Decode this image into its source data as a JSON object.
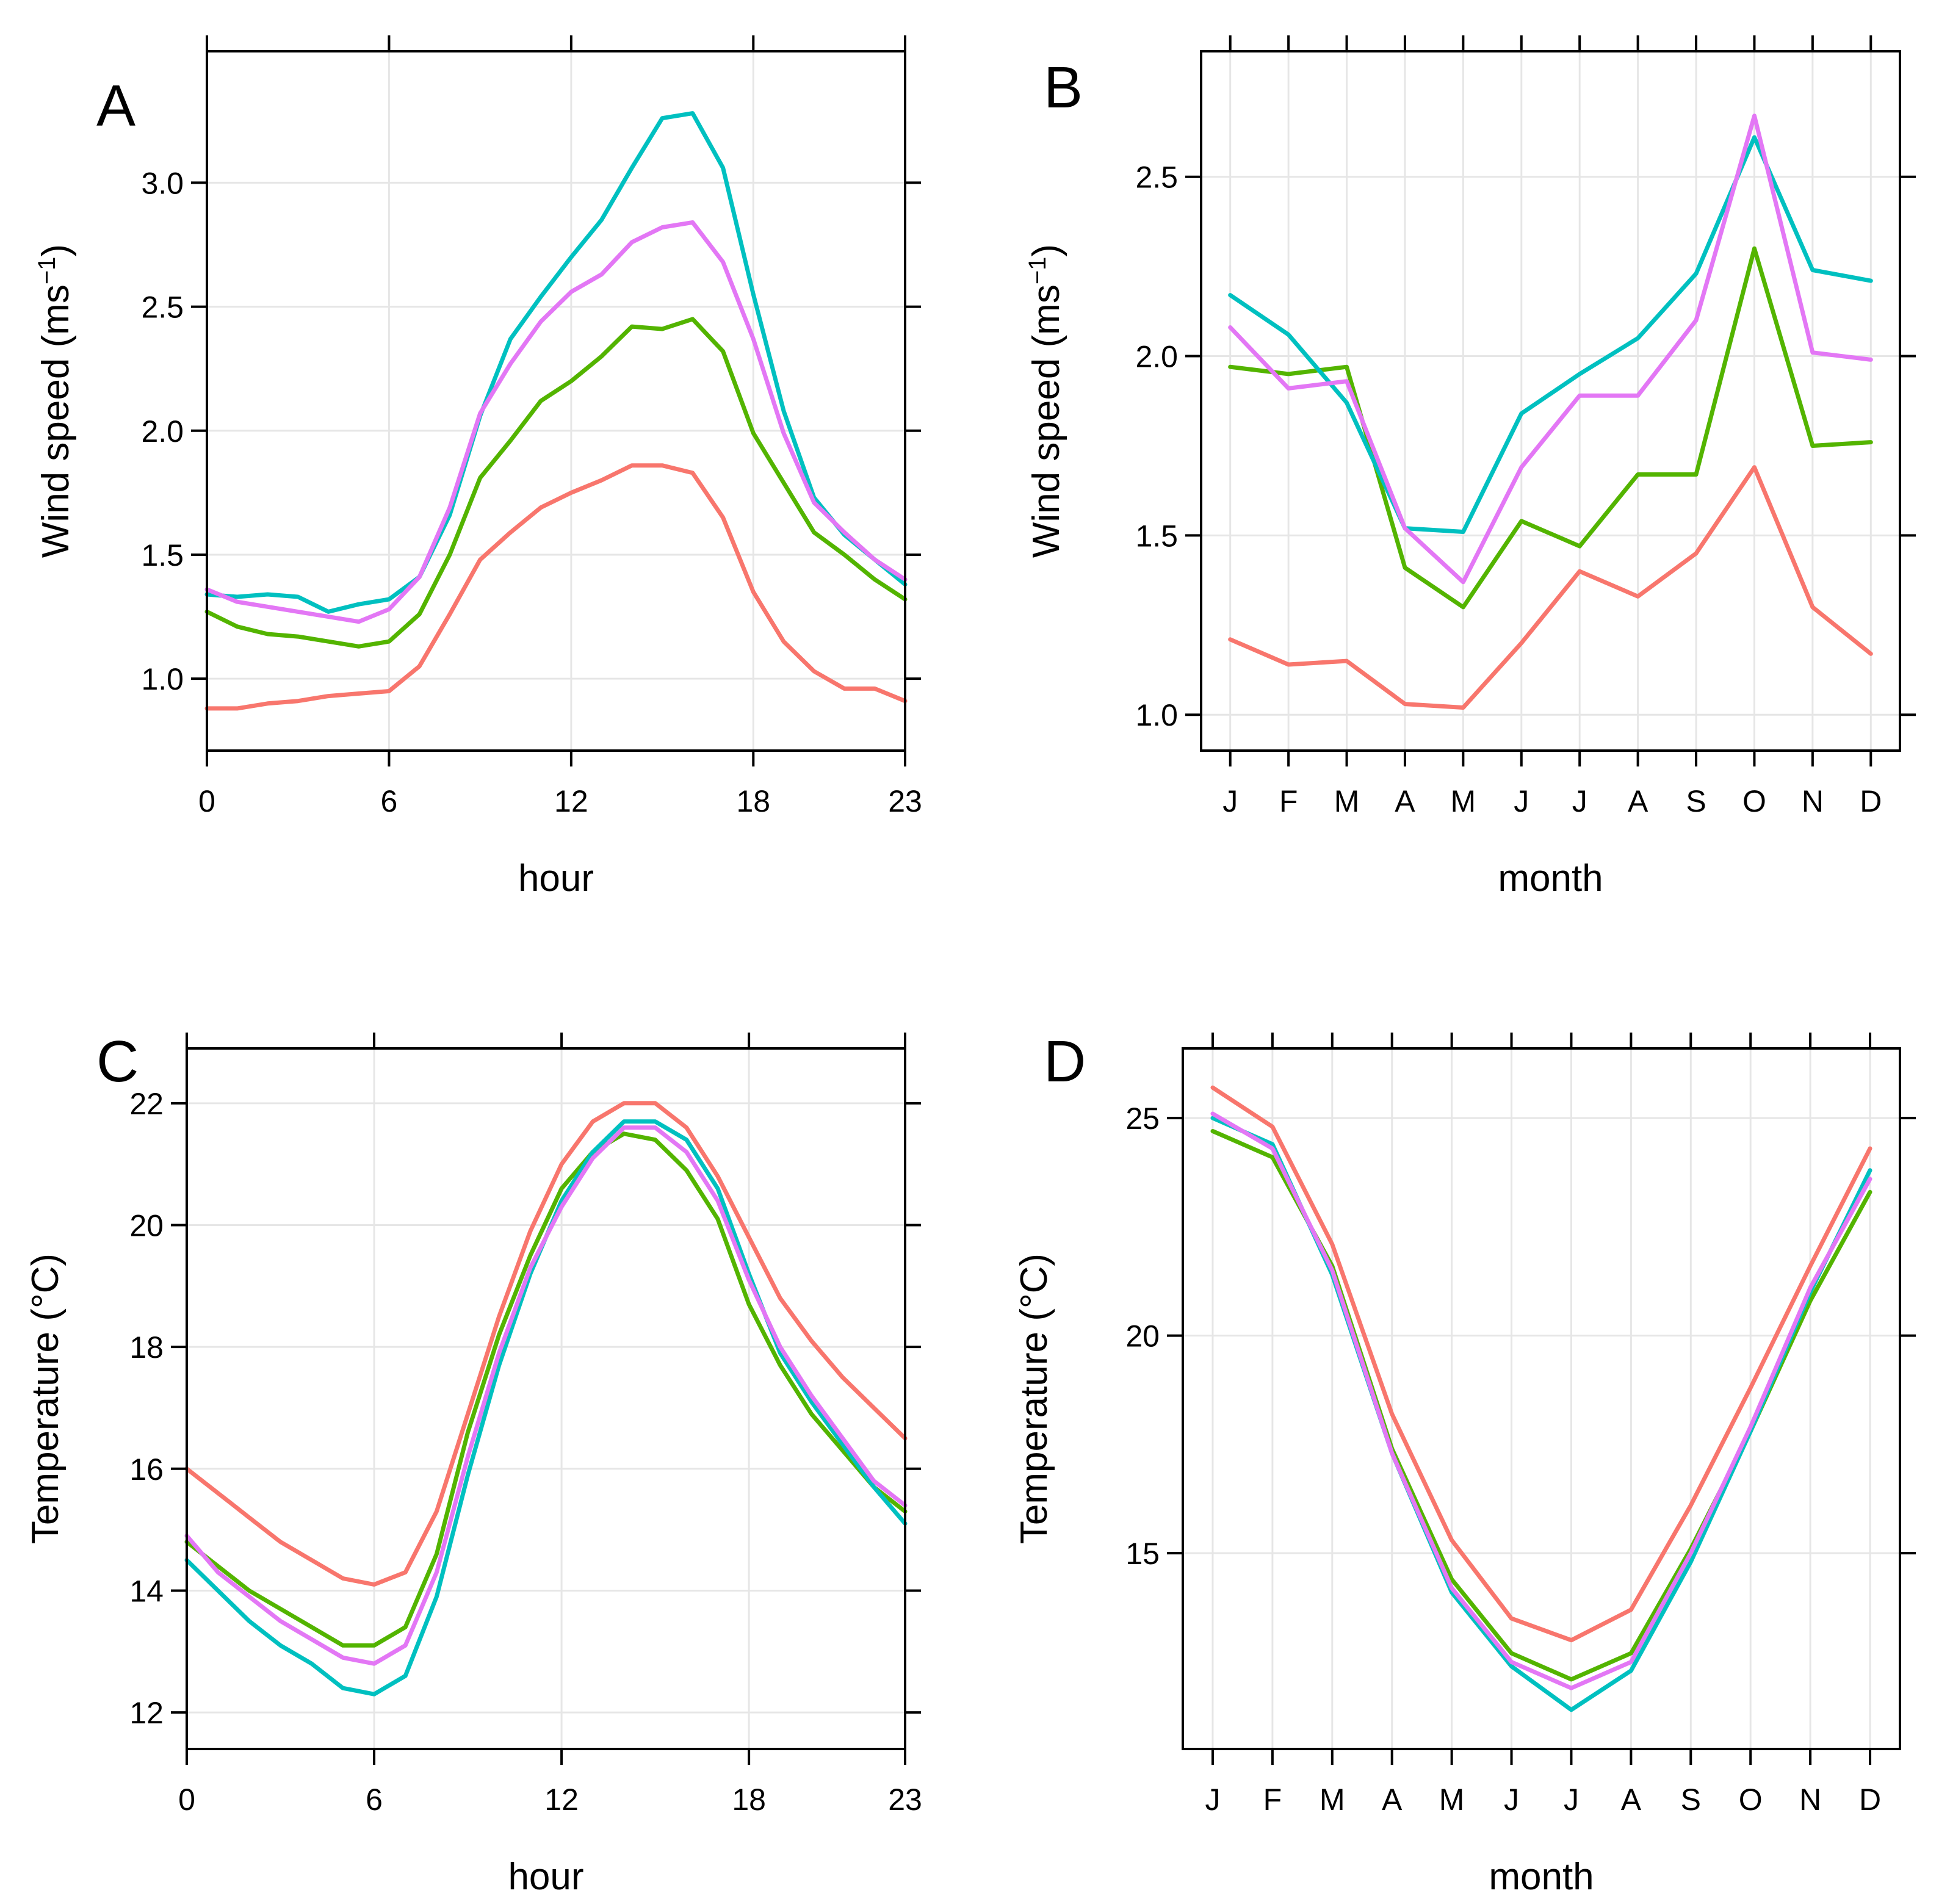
{
  "figure": {
    "series_colors": [
      "#F8766D",
      "#53B400",
      "#00C0C0",
      "#E377F5"
    ]
  },
  "chart_data": [
    {
      "id": "A",
      "panel_letter": "A",
      "type": "line",
      "xlabel": "hour",
      "ylabel_main": "Wind speed (ms",
      "ylabel_sup": "−1",
      "ylabel_close": ")",
      "xlim": [
        0,
        23
      ],
      "ylim": [
        0.71,
        3.53
      ],
      "x_ticks": [
        0,
        6,
        12,
        18,
        23
      ],
      "x_tick_labels": [
        "0",
        "6",
        "12",
        "18",
        "23"
      ],
      "y_ticks": [
        1.0,
        1.5,
        2.0,
        2.5,
        3.0
      ],
      "y_tick_labels": [
        "1.0",
        "1.5",
        "2.0",
        "2.5",
        "3.0"
      ],
      "x": [
        0,
        1,
        2,
        3,
        4,
        5,
        6,
        7,
        8,
        9,
        10,
        11,
        12,
        13,
        14,
        15,
        16,
        17,
        18,
        19,
        20,
        21,
        22,
        23
      ],
      "series": [
        {
          "name": "red",
          "color": "#F8766D",
          "values": [
            0.88,
            0.88,
            0.9,
            0.91,
            0.93,
            0.94,
            0.95,
            1.05,
            1.26,
            1.48,
            1.59,
            1.69,
            1.75,
            1.8,
            1.86,
            1.86,
            1.83,
            1.65,
            1.35,
            1.15,
            1.03,
            0.96,
            0.96,
            0.91
          ]
        },
        {
          "name": "green",
          "color": "#53B400",
          "values": [
            1.27,
            1.21,
            1.18,
            1.17,
            1.15,
            1.13,
            1.15,
            1.26,
            1.5,
            1.81,
            1.96,
            2.12,
            2.2,
            2.3,
            2.42,
            2.41,
            2.45,
            2.32,
            1.99,
            1.79,
            1.59,
            1.5,
            1.4,
            1.32
          ]
        },
        {
          "name": "cyan",
          "color": "#00C0C0",
          "values": [
            1.34,
            1.33,
            1.34,
            1.33,
            1.27,
            1.3,
            1.32,
            1.41,
            1.66,
            2.06,
            2.37,
            2.54,
            2.7,
            2.85,
            3.06,
            3.26,
            3.28,
            3.06,
            2.55,
            2.08,
            1.73,
            1.58,
            1.48,
            1.38
          ]
        },
        {
          "name": "violet",
          "color": "#E377F5",
          "values": [
            1.36,
            1.31,
            1.29,
            1.27,
            1.25,
            1.23,
            1.28,
            1.41,
            1.69,
            2.07,
            2.27,
            2.44,
            2.56,
            2.63,
            2.76,
            2.82,
            2.84,
            2.68,
            2.37,
            1.99,
            1.71,
            1.59,
            1.48,
            1.4
          ]
        }
      ]
    },
    {
      "id": "B",
      "panel_letter": "B",
      "type": "line",
      "xlabel": "month",
      "ylabel_main": "Wind speed (ms",
      "ylabel_sup": "−1",
      "ylabel_close": ")",
      "xlim": [
        0.5,
        12.5
      ],
      "ylim": [
        0.9,
        2.85
      ],
      "x_ticks": [
        1,
        2,
        3,
        4,
        5,
        6,
        7,
        8,
        9,
        10,
        11,
        12
      ],
      "x_tick_labels": [
        "J",
        "F",
        "M",
        "A",
        "M",
        "J",
        "J",
        "A",
        "S",
        "O",
        "N",
        "D"
      ],
      "y_ticks": [
        1.0,
        1.5,
        2.0,
        2.5
      ],
      "y_tick_labels": [
        "1.0",
        "1.5",
        "2.0",
        "2.5"
      ],
      "x": [
        1,
        2,
        3,
        4,
        5,
        6,
        7,
        8,
        9,
        10,
        11,
        12
      ],
      "series": [
        {
          "name": "red",
          "color": "#F8766D",
          "values": [
            1.21,
            1.14,
            1.15,
            1.03,
            1.02,
            1.2,
            1.4,
            1.33,
            1.45,
            1.69,
            1.3,
            1.17
          ]
        },
        {
          "name": "green",
          "color": "#53B400",
          "values": [
            1.97,
            1.95,
            1.97,
            1.41,
            1.3,
            1.54,
            1.47,
            1.67,
            1.67,
            2.3,
            1.75,
            1.76
          ]
        },
        {
          "name": "cyan",
          "color": "#00C0C0",
          "values": [
            2.17,
            2.06,
            1.87,
            1.52,
            1.51,
            1.84,
            1.95,
            2.05,
            2.23,
            2.61,
            2.24,
            2.21
          ]
        },
        {
          "name": "violet",
          "color": "#E377F5",
          "values": [
            2.08,
            1.91,
            1.93,
            1.52,
            1.37,
            1.69,
            1.89,
            1.89,
            2.1,
            2.67,
            2.01,
            1.99
          ]
        }
      ]
    },
    {
      "id": "C",
      "panel_letter": "C",
      "type": "line",
      "xlabel": "hour",
      "ylabel_main": "Temperature (°C)",
      "ylabel_sup": "",
      "ylabel_close": "",
      "xlim": [
        0,
        23
      ],
      "ylim": [
        11.4,
        22.9
      ],
      "x_ticks": [
        0,
        6,
        12,
        18,
        23
      ],
      "x_tick_labels": [
        "0",
        "6",
        "12",
        "18",
        "23"
      ],
      "y_ticks": [
        12,
        14,
        16,
        18,
        20,
        22
      ],
      "y_tick_labels": [
        "12",
        "14",
        "16",
        "18",
        "20",
        "22"
      ],
      "x": [
        0,
        1,
        2,
        3,
        4,
        5,
        6,
        7,
        8,
        9,
        10,
        11,
        12,
        13,
        14,
        15,
        16,
        17,
        18,
        19,
        20,
        21,
        22,
        23
      ],
      "series": [
        {
          "name": "red",
          "color": "#F8766D",
          "values": [
            16.0,
            15.6,
            15.2,
            14.8,
            14.5,
            14.2,
            14.1,
            14.3,
            15.3,
            16.9,
            18.5,
            19.9,
            21.0,
            21.7,
            22.0,
            22.0,
            21.6,
            20.8,
            19.8,
            18.8,
            18.1,
            17.5,
            17.0,
            16.5
          ]
        },
        {
          "name": "green",
          "color": "#53B400",
          "values": [
            14.8,
            14.4,
            14.0,
            13.7,
            13.4,
            13.1,
            13.1,
            13.4,
            14.6,
            16.6,
            18.2,
            19.5,
            20.6,
            21.2,
            21.5,
            21.4,
            20.9,
            20.1,
            18.7,
            17.7,
            16.9,
            16.3,
            15.7,
            15.3
          ]
        },
        {
          "name": "cyan",
          "color": "#00C0C0",
          "values": [
            14.5,
            14.0,
            13.5,
            13.1,
            12.8,
            12.4,
            12.3,
            12.6,
            13.9,
            15.9,
            17.7,
            19.2,
            20.4,
            21.2,
            21.7,
            21.7,
            21.4,
            20.6,
            19.2,
            17.9,
            17.1,
            16.4,
            15.7,
            15.1
          ]
        },
        {
          "name": "violet",
          "color": "#E377F5",
          "values": [
            14.9,
            14.3,
            13.9,
            13.5,
            13.2,
            12.9,
            12.8,
            13.1,
            14.3,
            16.2,
            17.9,
            19.3,
            20.3,
            21.1,
            21.6,
            21.6,
            21.2,
            20.4,
            19.1,
            18.0,
            17.2,
            16.5,
            15.8,
            15.4
          ]
        }
      ]
    },
    {
      "id": "D",
      "panel_letter": "D",
      "type": "line",
      "xlabel": "month",
      "ylabel_main": "Temperature (°C)",
      "ylabel_sup": "",
      "ylabel_close": "",
      "xlim": [
        0.5,
        12.5
      ],
      "ylim": [
        10.5,
        26.6
      ],
      "x_ticks": [
        1,
        2,
        3,
        4,
        5,
        6,
        7,
        8,
        9,
        10,
        11,
        12
      ],
      "x_tick_labels": [
        "J",
        "F",
        "M",
        "A",
        "M",
        "J",
        "J",
        "A",
        "S",
        "O",
        "N",
        "D"
      ],
      "y_ticks": [
        15,
        20,
        25
      ],
      "y_tick_labels": [
        "15",
        "20",
        "25"
      ],
      "x": [
        1,
        2,
        3,
        4,
        5,
        6,
        7,
        8,
        9,
        10,
        11,
        12
      ],
      "series": [
        {
          "name": "red",
          "color": "#F8766D",
          "values": [
            25.7,
            24.8,
            22.1,
            18.2,
            15.3,
            13.5,
            13.0,
            13.7,
            16.1,
            18.8,
            21.6,
            24.3
          ]
        },
        {
          "name": "green",
          "color": "#53B400",
          "values": [
            24.7,
            24.1,
            21.6,
            17.4,
            14.4,
            12.7,
            12.1,
            12.7,
            15.1,
            17.8,
            20.8,
            23.3
          ]
        },
        {
          "name": "cyan",
          "color": "#00C0C0",
          "values": [
            25.0,
            24.4,
            21.4,
            17.3,
            14.1,
            12.4,
            11.4,
            12.3,
            14.8,
            17.8,
            21.0,
            23.8
          ]
        },
        {
          "name": "violet",
          "color": "#E377F5",
          "values": [
            25.1,
            24.3,
            21.5,
            17.3,
            14.2,
            12.5,
            11.9,
            12.5,
            15.0,
            17.9,
            21.1,
            23.6
          ]
        }
      ]
    }
  ]
}
